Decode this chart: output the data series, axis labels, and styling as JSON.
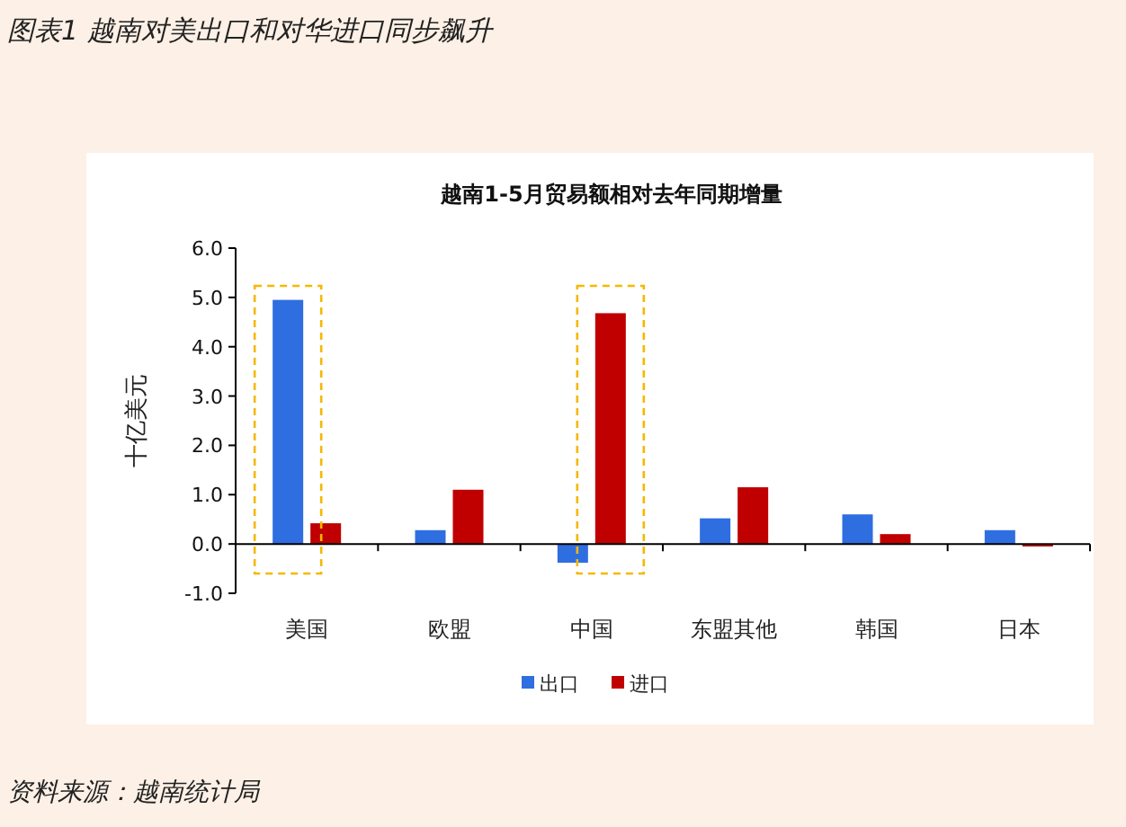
{
  "chart_data": {
    "type": "bar",
    "title": "图表1  越南对美出口和对华进口同步飙升",
    "subtitle": "越南1-5月贸易额相对去年同期增量",
    "ylabel": "十亿美元",
    "categories": [
      "美国",
      "欧盟",
      "中国",
      "东盟其他",
      "韩国",
      "日本"
    ],
    "series": [
      {
        "name": "出口",
        "color": "#2f6ee0",
        "values": [
          4.95,
          0.28,
          -0.38,
          0.52,
          0.6,
          0.28
        ]
      },
      {
        "name": "进口",
        "color": "#c00000",
        "values": [
          0.42,
          1.1,
          4.68,
          1.15,
          0.2,
          -0.05
        ]
      }
    ],
    "ylim": [
      -1,
      6
    ],
    "yticks": [
      {
        "value": -1,
        "label": "-1.0"
      },
      {
        "value": 0,
        "label": "0.0"
      },
      {
        "value": 1,
        "label": "1.0"
      },
      {
        "value": 2,
        "label": "2.0"
      },
      {
        "value": 3,
        "label": "3.0"
      },
      {
        "value": 4,
        "label": "4.0"
      },
      {
        "value": 5,
        "label": "5.0"
      },
      {
        "value": 6,
        "label": "6.0"
      }
    ],
    "legend": "bottom",
    "annotations": [
      "资料来源：越南统计局"
    ]
  }
}
